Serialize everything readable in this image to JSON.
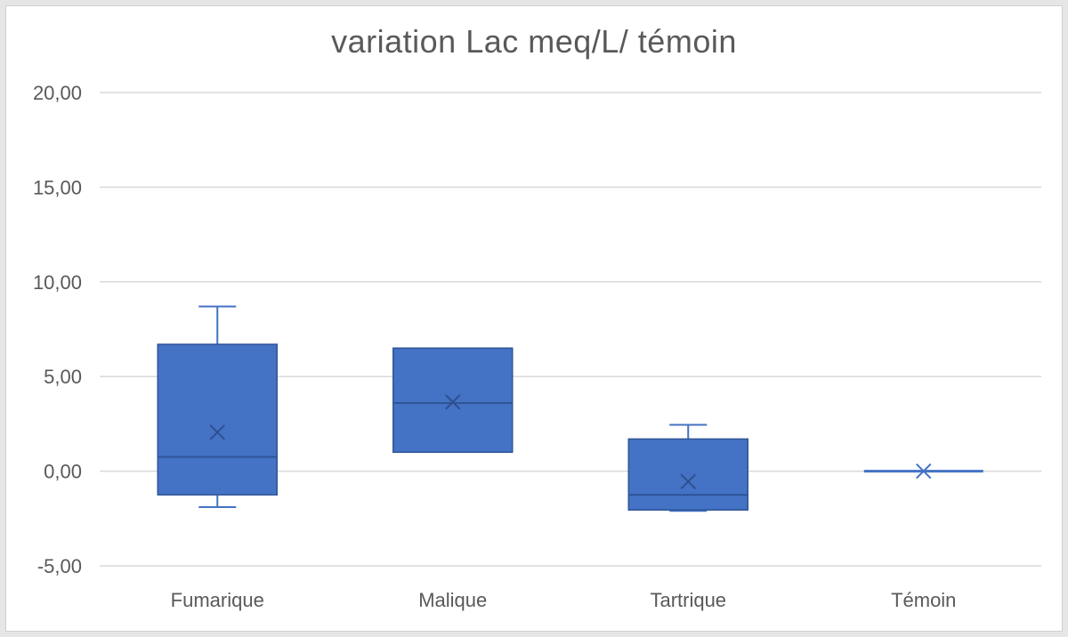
{
  "chart_data": {
    "type": "boxplot",
    "title": "variation Lac meq/L/ témoin",
    "xlabel": "",
    "ylabel": "",
    "ylim": [
      -5,
      20
    ],
    "yticks": [
      -5,
      0,
      5,
      10,
      15,
      20
    ],
    "ytick_labels": [
      "-5,00",
      "0,00",
      "5,00",
      "10,00",
      "15,00",
      "20,00"
    ],
    "grid": true,
    "legend": "none",
    "categories": [
      "Fumarique",
      "Malique",
      "Tartrique",
      "Témoin"
    ],
    "series": [
      {
        "boxes": [
          {
            "category": "Fumarique",
            "min": -1.9,
            "q1": -1.25,
            "median": 0.75,
            "q3": 6.7,
            "max": 8.7,
            "mean": 2.05
          },
          {
            "category": "Malique",
            "min": 1.0,
            "q1": 1.0,
            "median": 3.6,
            "q3": 6.5,
            "max": 6.5,
            "mean": 3.65
          },
          {
            "category": "Tartrique",
            "min": -2.1,
            "q1": -2.05,
            "median": -1.25,
            "q3": 1.7,
            "max": 2.45,
            "mean": -0.55
          },
          {
            "category": "Témoin",
            "min": 0.0,
            "q1": 0.0,
            "median": 0.0,
            "q3": 0.0,
            "max": 0.0,
            "mean": 0.0
          }
        ]
      }
    ],
    "colors": {
      "box_fill": "#4472c4",
      "box_stroke": "#2f5597",
      "grid": "#d9d9d9",
      "text": "#595959"
    }
  }
}
